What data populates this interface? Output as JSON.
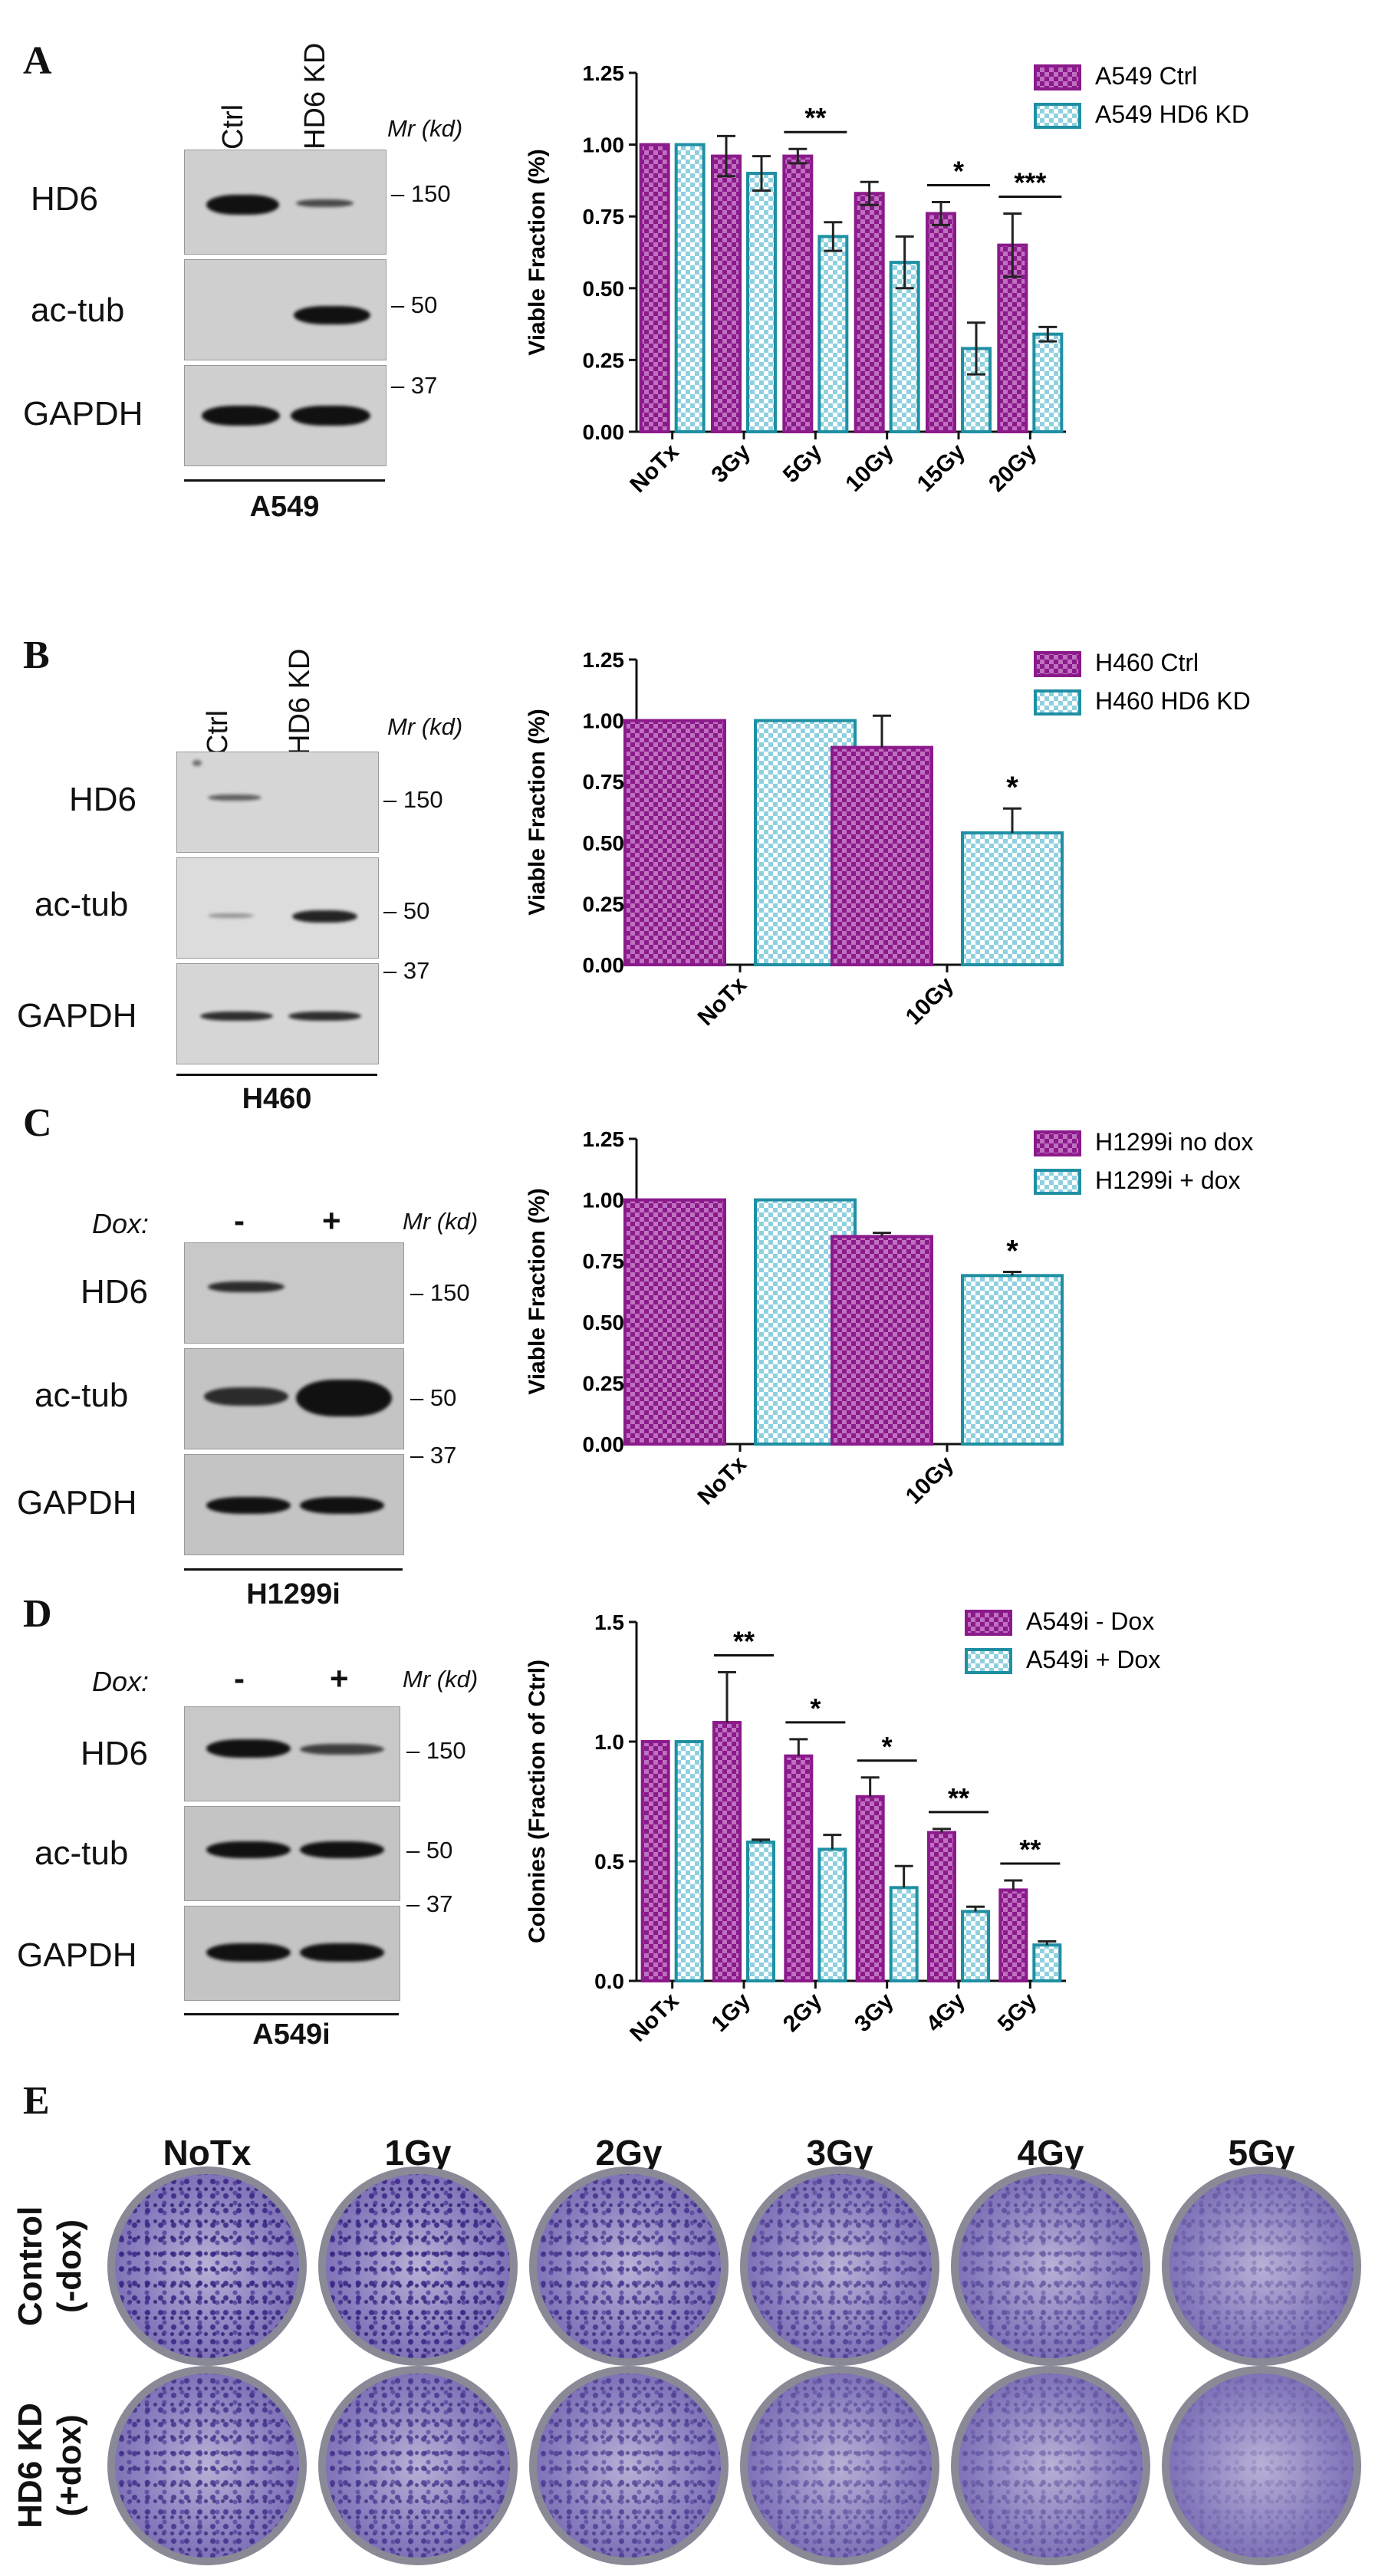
{
  "panels": {
    "A": {
      "letter": "A",
      "blot": {
        "columns": [
          "Ctrl",
          "HD6 KD"
        ],
        "mr_label": "Mr (kd)",
        "rows": [
          "HD6",
          "ac-tub",
          "GAPDH"
        ],
        "markers": [
          "150",
          "50",
          "37"
        ],
        "cell_line": "A549"
      }
    },
    "B": {
      "letter": "B",
      "blot": {
        "columns": [
          "Ctrl",
          "HD6 KD"
        ],
        "mr_label": "Mr (kd)",
        "rows": [
          "HD6",
          "ac-tub",
          "GAPDH"
        ],
        "markers": [
          "150",
          "50",
          "37"
        ],
        "cell_line": "H460"
      }
    },
    "C": {
      "letter": "C",
      "blot": {
        "dox_label": "Dox:",
        "signs": [
          "-",
          "+"
        ],
        "mr_label": "Mr (kd)",
        "rows": [
          "HD6",
          "ac-tub",
          "GAPDH"
        ],
        "markers": [
          "150",
          "50",
          "37"
        ],
        "cell_line": "H1299i"
      }
    },
    "D": {
      "letter": "D",
      "blot": {
        "dox_label": "Dox:",
        "signs": [
          "-",
          "+"
        ],
        "mr_label": "Mr (kd)",
        "rows": [
          "HD6",
          "ac-tub",
          "GAPDH"
        ],
        "markers": [
          "150",
          "50",
          "37"
        ],
        "cell_line": "A549i"
      }
    },
    "E": {
      "letter": "E",
      "columns": [
        "NoTx",
        "1Gy",
        "2Gy",
        "3Gy",
        "4Gy",
        "5Gy"
      ],
      "rows": [
        "Control\n(-dox)",
        "HD6 KD\n(+dox)"
      ]
    }
  },
  "colors": {
    "magenta": "#8b1a8b",
    "magenta_fill": "#c070c0",
    "teal": "#1f8fa3",
    "teal_fill": "#8fd0de"
  },
  "chart_data": [
    {
      "id": "A",
      "type": "bar",
      "categories": [
        "NoTx",
        "3Gy",
        "5Gy",
        "10Gy",
        "15Gy",
        "20Gy"
      ],
      "series": [
        {
          "name": "A549 Ctrl",
          "values": [
            1.0,
            0.96,
            0.96,
            0.83,
            0.76,
            0.65
          ],
          "errors": [
            0,
            0.07,
            0.025,
            0.04,
            0.04,
            0.11
          ]
        },
        {
          "name": "A549 HD6 KD",
          "values": [
            1.0,
            0.9,
            0.68,
            0.59,
            0.29,
            0.34
          ],
          "errors": [
            0,
            0.06,
            0.05,
            0.09,
            0.09,
            0.025
          ]
        }
      ],
      "significance": [
        {
          "category": "5Gy",
          "label": "**"
        },
        {
          "category": "15Gy",
          "label": "*"
        },
        {
          "category": "20Gy",
          "label": "***"
        }
      ],
      "ylabel": "Viable Fraction (%)",
      "ylim": [
        0,
        1.25
      ],
      "yticks": [
        "0.00",
        "0.25",
        "0.50",
        "0.75",
        "1.00",
        "1.25"
      ],
      "legend": "top-right"
    },
    {
      "id": "B",
      "type": "bar",
      "categories": [
        "NoTx",
        "10Gy"
      ],
      "series": [
        {
          "name": "H460 Ctrl",
          "values": [
            1.0,
            0.89
          ],
          "errors": [
            0,
            0.13
          ]
        },
        {
          "name": "H460 HD6 KD",
          "values": [
            1.0,
            0.54
          ],
          "errors": [
            0,
            0.1
          ]
        }
      ],
      "significance": [
        {
          "category": "10Gy",
          "label": "*",
          "series": 1
        }
      ],
      "ylabel": "Viable Fraction (%)",
      "ylim": [
        0,
        1.25
      ],
      "yticks": [
        "0.00",
        "0.25",
        "0.50",
        "0.75",
        "1.00",
        "1.25"
      ],
      "legend": "top-right"
    },
    {
      "id": "C",
      "type": "bar",
      "categories": [
        "NoTx",
        "10Gy"
      ],
      "series": [
        {
          "name": "H1299i no dox",
          "values": [
            1.0,
            0.85
          ],
          "errors": [
            0,
            0.015
          ]
        },
        {
          "name": "H1299i + dox",
          "values": [
            1.0,
            0.69
          ],
          "errors": [
            0,
            0.015
          ]
        }
      ],
      "significance": [
        {
          "category": "10Gy",
          "label": "*",
          "series": 1
        }
      ],
      "ylabel": "Viable Fraction (%)",
      "ylim": [
        0,
        1.25
      ],
      "yticks": [
        "0.00",
        "0.25",
        "0.50",
        "0.75",
        "1.00",
        "1.25"
      ],
      "legend": "top-right"
    },
    {
      "id": "D",
      "type": "bar",
      "categories": [
        "NoTx",
        "1Gy",
        "2Gy",
        "3Gy",
        "4Gy",
        "5Gy"
      ],
      "series": [
        {
          "name": "A549i - Dox",
          "values": [
            1.0,
            1.08,
            0.94,
            0.77,
            0.62,
            0.38
          ],
          "errors": [
            0,
            0.21,
            0.07,
            0.08,
            0.015,
            0.04
          ]
        },
        {
          "name": "A549i + Dox",
          "values": [
            1.0,
            0.58,
            0.55,
            0.39,
            0.29,
            0.15
          ],
          "errors": [
            0,
            0.01,
            0.06,
            0.09,
            0.02,
            0.015
          ]
        }
      ],
      "significance": [
        {
          "category": "1Gy",
          "label": "**"
        },
        {
          "category": "2Gy",
          "label": "*"
        },
        {
          "category": "3Gy",
          "label": "*"
        },
        {
          "category": "4Gy",
          "label": "**"
        },
        {
          "category": "5Gy",
          "label": "**"
        }
      ],
      "ylabel": "Colonies (Fraction of Ctrl)",
      "ylim": [
        0,
        1.5
      ],
      "yticks": [
        "0.0",
        "0.5",
        "1.0",
        "1.5"
      ],
      "legend": "top-right"
    }
  ]
}
